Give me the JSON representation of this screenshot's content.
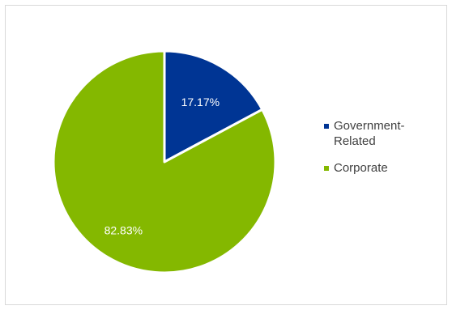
{
  "chart_data": {
    "type": "pie",
    "categories": [
      "Government-Related",
      "Corporate"
    ],
    "values": [
      17.17,
      82.83
    ],
    "data_labels": [
      "17.17%",
      "82.83%"
    ],
    "colors": [
      "#003594",
      "#84b800"
    ],
    "legend_position": "right"
  }
}
